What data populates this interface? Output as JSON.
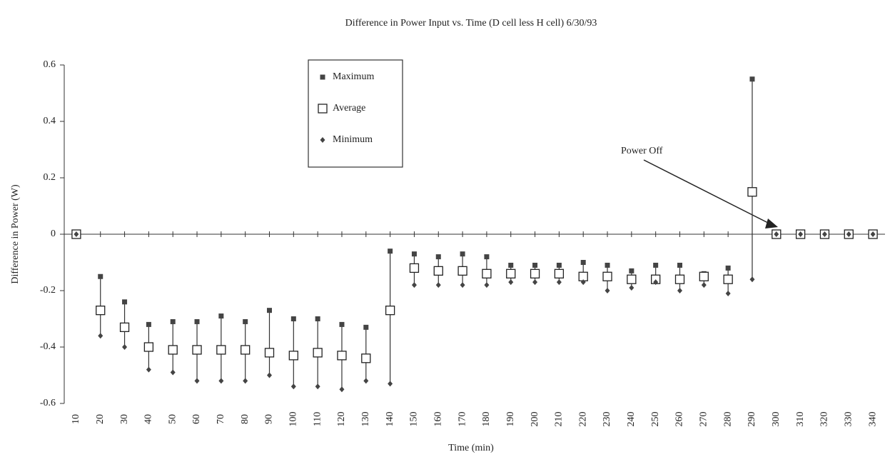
{
  "chart_data": {
    "type": "scatter",
    "title": "Difference in Power Input vs. Time (D cell less H cell)  6/30/93",
    "x_label": "Time (min)",
    "y_label": "Difference in Power (W)",
    "annotation": "Power Off",
    "categories": [
      "10",
      "20",
      "30",
      "40",
      "50",
      "60",
      "70",
      "80",
      "90",
      "100",
      "110",
      "120",
      "130",
      "140",
      "150",
      "160",
      "170",
      "180",
      "190",
      "200",
      "210",
      "220",
      "230",
      "240",
      "250",
      "260",
      "270",
      "280",
      "290",
      "300",
      "310",
      "320",
      "330",
      "340"
    ],
    "series": [
      {
        "name": "Maximum",
        "color": "#444444",
        "values": [
          0,
          -0.15,
          -0.24,
          -0.32,
          -0.31,
          -0.31,
          -0.29,
          -0.31,
          -0.27,
          -0.3,
          -0.3,
          -0.32,
          -0.33,
          -0.06,
          -0.07,
          -0.08,
          -0.07,
          -0.08,
          -0.11,
          -0.11,
          -0.11,
          -0.1,
          -0.11,
          -0.13,
          -0.11,
          -0.11,
          -0.14,
          -0.12,
          0.55,
          0,
          0,
          0,
          0,
          0
        ]
      },
      {
        "name": "Average",
        "color": "#222222",
        "values": [
          0,
          -0.27,
          -0.33,
          -0.4,
          -0.41,
          -0.41,
          -0.41,
          -0.41,
          -0.42,
          -0.43,
          -0.42,
          -0.43,
          -0.44,
          -0.27,
          -0.12,
          -0.13,
          -0.13,
          -0.14,
          -0.14,
          -0.14,
          -0.14,
          -0.15,
          -0.15,
          -0.16,
          -0.16,
          -0.16,
          -0.15,
          -0.16,
          0.15,
          0,
          0,
          0,
          0,
          0
        ]
      },
      {
        "name": "Minimum",
        "color": "#444444",
        "values": [
          0,
          -0.36,
          -0.4,
          -0.48,
          -0.49,
          -0.52,
          -0.52,
          -0.52,
          -0.5,
          -0.54,
          -0.54,
          -0.55,
          -0.52,
          -0.53,
          -0.18,
          -0.18,
          -0.18,
          -0.18,
          -0.17,
          -0.17,
          -0.17,
          -0.17,
          -0.2,
          -0.19,
          -0.17,
          -0.2,
          -0.18,
          -0.21,
          -0.16,
          0,
          0,
          0,
          0,
          0
        ]
      }
    ],
    "ylim": [
      -0.6,
      0.6
    ],
    "yticks": [
      -0.6,
      -0.4,
      -0.2,
      0,
      0.2,
      0.4,
      0.6
    ]
  }
}
